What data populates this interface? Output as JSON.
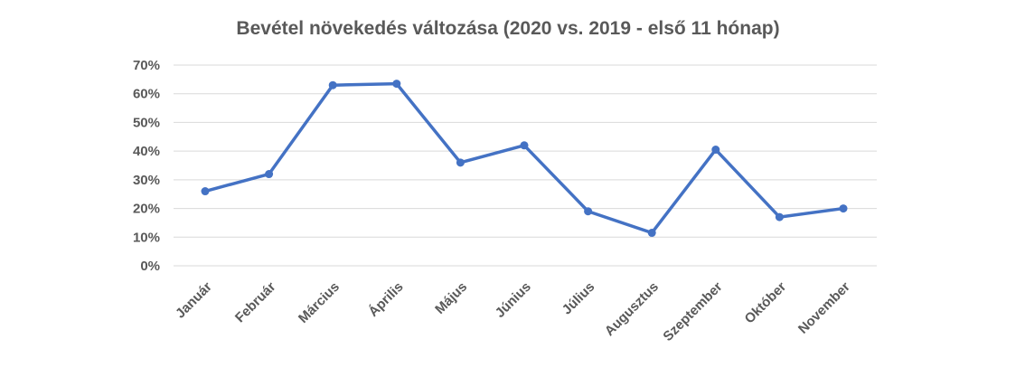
{
  "chart_data": {
    "type": "line",
    "title": "Bevétel növekedés változása (2020 vs. 2019 - első 11 hónap)",
    "xlabel": "",
    "ylabel": "",
    "ylim": [
      0,
      70
    ],
    "ytick_step": 10,
    "ytick_suffix": "%",
    "grid": true,
    "categories": [
      "Január",
      "Február",
      "Március",
      "Április",
      "Május",
      "Június",
      "Július",
      "Augusztus",
      "Szeptember",
      "Október",
      "November"
    ],
    "series": [
      {
        "name": "Bevétel növekedés",
        "color": "#4472c4",
        "values": [
          26,
          32,
          63,
          63.5,
          36,
          42,
          19,
          11.5,
          40.5,
          17,
          20
        ]
      }
    ]
  }
}
